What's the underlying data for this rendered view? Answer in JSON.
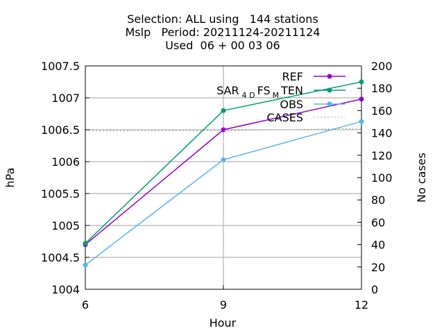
{
  "chart_data": {
    "type": "line",
    "title_lines": [
      "Selection: ALL using   144 stations",
      "Mslp   Period: 20211124-20211124",
      "Used  06 + 00 03 06"
    ],
    "xlabel": "Hour",
    "ylabel": "hPa",
    "y2label": "No cases",
    "x": [
      6,
      9,
      12
    ],
    "x_ticks": [
      6,
      9,
      12
    ],
    "xlim": [
      6,
      12
    ],
    "ylim": [
      1004,
      1007.5
    ],
    "y_ticks": [
      1004,
      1004.5,
      1005,
      1005.5,
      1006,
      1006.5,
      1007,
      1007.5
    ],
    "y_tick_labels": [
      "1004",
      "1004.5",
      "1005",
      "1005.5",
      "1006",
      "1006.5",
      "1007",
      "1007.5"
    ],
    "y2lim": [
      0,
      200
    ],
    "y2_ticks": [
      0,
      20,
      40,
      60,
      80,
      100,
      120,
      140,
      160,
      180,
      200
    ],
    "y2_tick_labels": [
      "0",
      "20",
      "40",
      "60",
      "80",
      "100",
      "120",
      "140",
      "160",
      "180",
      "200"
    ],
    "grid": true,
    "legend_position": "top-right",
    "series": [
      {
        "name": "REF",
        "values": [
          1004.7,
          1006.5,
          1006.98
        ],
        "color": "#9400d3",
        "axis": "y1",
        "style": "line-points"
      },
      {
        "name_parts": [
          "SAR",
          "4",
          "D",
          "FS",
          "M",
          "TEN"
        ],
        "values": [
          1004.72,
          1006.8,
          1007.25
        ],
        "color": "#009e73",
        "axis": "y1",
        "style": "line-points"
      },
      {
        "name": "OBS",
        "values": [
          1004.38,
          1006.03,
          1006.63
        ],
        "color": "#56b4e9",
        "axis": "y1",
        "style": "line-points"
      },
      {
        "name": "CASES",
        "values": [
          142,
          142,
          144
        ],
        "color": "#a0a0a0",
        "axis": "y2",
        "style": "dashed"
      }
    ]
  }
}
